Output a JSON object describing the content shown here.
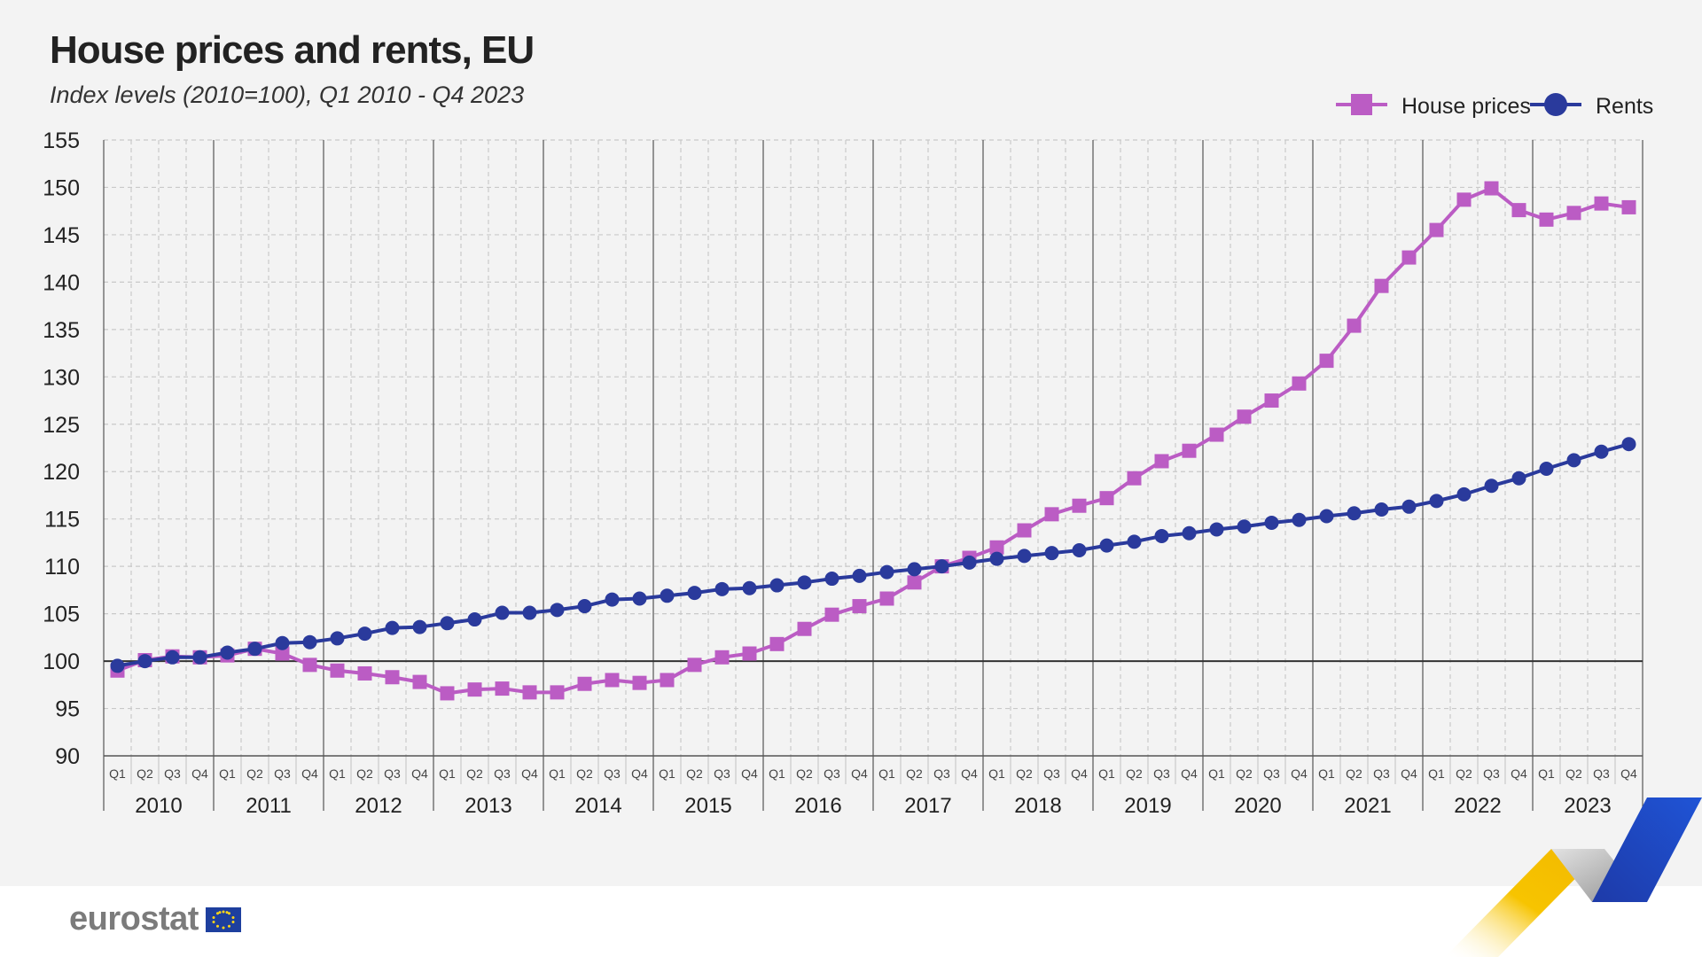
{
  "title": "House prices and rents, EU",
  "subtitle": "Index levels (2010=100), Q1 2010 - Q4 2023",
  "logo": {
    "text": "eurostat"
  },
  "colors": {
    "house_prices": "#bb5cc4",
    "rents": "#2a3a9c",
    "grid": "#c9c9c9",
    "baseline": "#333333",
    "background": "#f3f3f3"
  },
  "chart_data": {
    "type": "line",
    "title": "House prices and rents, EU",
    "subtitle": "Index levels (2010=100), Q1 2010 - Q4 2023",
    "xlabel": "",
    "ylabel": "",
    "ylim": [
      90,
      155
    ],
    "yticks": [
      90,
      95,
      100,
      105,
      110,
      115,
      120,
      125,
      130,
      135,
      140,
      145,
      150,
      155
    ],
    "quarters": [
      "Q1",
      "Q2",
      "Q3",
      "Q4"
    ],
    "years": [
      "2010",
      "2011",
      "2012",
      "2013",
      "2014",
      "2015",
      "2016",
      "2017",
      "2018",
      "2019",
      "2020",
      "2021",
      "2022",
      "2023"
    ],
    "baseline": 100,
    "legend_position": "top-right",
    "series": [
      {
        "name": "House prices",
        "marker": "square",
        "color": "#bb5cc4",
        "values": [
          99.0,
          100.1,
          100.5,
          100.4,
          100.6,
          101.3,
          100.8,
          99.6,
          99.0,
          98.7,
          98.3,
          97.8,
          96.6,
          97.0,
          97.1,
          96.7,
          96.7,
          97.6,
          98.0,
          97.7,
          98.0,
          99.6,
          100.4,
          100.8,
          101.8,
          103.4,
          104.9,
          105.8,
          106.6,
          108.3,
          110.0,
          110.9,
          112.0,
          113.8,
          115.5,
          116.4,
          117.2,
          119.3,
          121.1,
          122.2,
          123.9,
          125.8,
          127.5,
          129.3,
          131.7,
          135.4,
          139.6,
          142.6,
          145.5,
          148.7,
          149.9,
          147.6,
          146.6,
          147.3,
          148.3,
          147.9
        ]
      },
      {
        "name": "Rents",
        "marker": "circle",
        "color": "#2a3a9c",
        "values": [
          99.5,
          100.0,
          100.4,
          100.4,
          100.9,
          101.3,
          101.9,
          102.0,
          102.4,
          102.9,
          103.5,
          103.6,
          104.0,
          104.4,
          105.1,
          105.1,
          105.4,
          105.8,
          106.5,
          106.6,
          106.9,
          107.2,
          107.6,
          107.7,
          108.0,
          108.3,
          108.7,
          109.0,
          109.4,
          109.7,
          110.0,
          110.4,
          110.8,
          111.1,
          111.4,
          111.7,
          112.2,
          112.6,
          113.2,
          113.5,
          113.9,
          114.2,
          114.6,
          114.9,
          115.3,
          115.6,
          116.0,
          116.3,
          116.9,
          117.6,
          118.5,
          119.3,
          120.3,
          121.2,
          122.1,
          122.9
        ]
      }
    ]
  }
}
